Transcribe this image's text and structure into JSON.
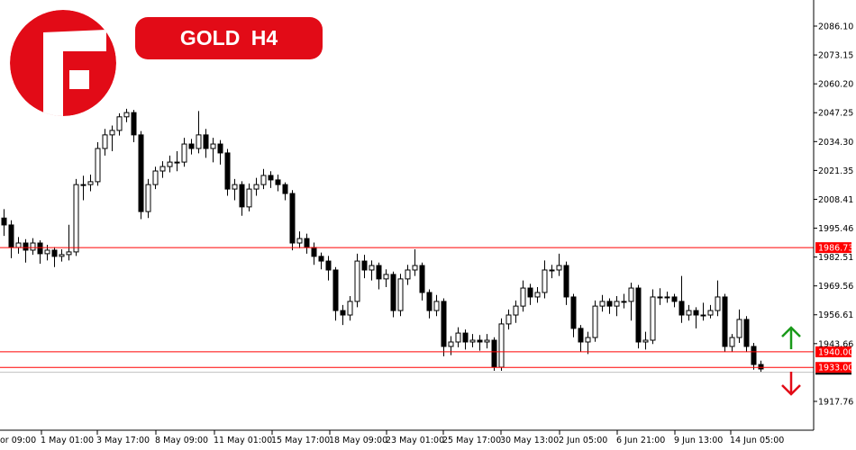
{
  "header": {
    "symbol_timeframe": "GOLD  H4",
    "logo_letter": "F"
  },
  "colors": {
    "brand_red": "#e20b17",
    "level_line": "#ff0000",
    "bid_line": "#c0c0c0",
    "up_arrow": "#1a9a1a",
    "down_arrow": "#e20b17",
    "bull_body": "#ffffff",
    "bear_body": "#000000"
  },
  "chart_data": {
    "type": "candlestick",
    "title": "GOLD H4",
    "ylim": [
      1910,
      2100
    ],
    "y_axis_position": "right",
    "grid": false,
    "y_ticks": [
      "2086.10",
      "2073.15",
      "2060.20",
      "2047.25",
      "2034.30",
      "2021.35",
      "2008.41",
      "1995.46",
      "1982.51",
      "1969.56",
      "1956.61",
      "1943.66",
      "1917.76"
    ],
    "x_ticks": [
      "or 09:00",
      "1 May 01:00",
      "3 May 17:00",
      "8 May 09:00",
      "11 May 01:00",
      "15 May 17:00",
      "18 May 09:00",
      "23 May 01:00",
      "25 May 17:00",
      "30 May 13:00",
      "2 Jun 05:00",
      "6 Jun 21:00",
      "9 Jun 13:00",
      "14 Jun 05:00"
    ],
    "levels": [
      {
        "price": 1986.73,
        "label": "1986.73"
      },
      {
        "price": 1940.0,
        "label": "1940.00"
      },
      {
        "price": 1933.0,
        "label": "1933.00"
      }
    ],
    "bid_line": 1931.0,
    "signals": [
      {
        "direction": "up"
      },
      {
        "direction": "down"
      }
    ],
    "candles_ohlc": [
      [
        2000.0,
        2004.0,
        1992.0,
        1996.9
      ],
      [
        1996.9,
        1999.0,
        1982.0,
        1986.8
      ],
      [
        1986.8,
        1991.5,
        1984.0,
        1988.8
      ],
      [
        1988.8,
        1990.5,
        1980.0,
        1985.6
      ],
      [
        1985.6,
        1991.0,
        1983.5,
        1988.8
      ],
      [
        1988.8,
        1990.0,
        1979.5,
        1984.0
      ],
      [
        1984.0,
        1988.0,
        1981.0,
        1985.6
      ],
      [
        1985.6,
        1987.0,
        1978.0,
        1982.8
      ],
      [
        1982.8,
        1986.0,
        1980.5,
        1983.6
      ],
      [
        1983.6,
        1997.0,
        1981.0,
        1984.8
      ],
      [
        1984.8,
        2017.5,
        1983.0,
        2015.0
      ],
      [
        2015.0,
        2019.0,
        2008.0,
        2015.0
      ],
      [
        2015.0,
        2019.5,
        2012.0,
        2016.3
      ],
      [
        2016.3,
        2034.0,
        2014.5,
        2031.2
      ],
      [
        2031.2,
        2040.0,
        2028.0,
        2037.3
      ],
      [
        2037.3,
        2041.5,
        2030.0,
        2039.3
      ],
      [
        2039.3,
        2047.0,
        2037.0,
        2045.4
      ],
      [
        2045.4,
        2049.0,
        2043.0,
        2047.3
      ],
      [
        2047.3,
        2048.5,
        2034.0,
        2037.3
      ],
      [
        2037.3,
        2039.0,
        1999.5,
        2002.9
      ],
      [
        2002.9,
        2017.5,
        2000.0,
        2015.0
      ],
      [
        2015.0,
        2023.0,
        2013.0,
        2021.1
      ],
      [
        2021.1,
        2025.5,
        2018.0,
        2023.1
      ],
      [
        2023.1,
        2028.0,
        2020.5,
        2025.1
      ],
      [
        2025.1,
        2030.0,
        2021.0,
        2025.1
      ],
      [
        2025.1,
        2036.0,
        2023.0,
        2033.2
      ],
      [
        2033.2,
        2035.5,
        2028.5,
        2031.2
      ],
      [
        2031.2,
        2048.0,
        2029.0,
        2037.3
      ],
      [
        2037.3,
        2040.0,
        2027.0,
        2031.2
      ],
      [
        2031.2,
        2036.0,
        2025.0,
        2033.2
      ],
      [
        2033.2,
        2035.0,
        2024.0,
        2029.2
      ],
      [
        2029.2,
        2031.0,
        2010.0,
        2013.0
      ],
      [
        2013.0,
        2017.5,
        2008.0,
        2015.0
      ],
      [
        2015.0,
        2016.5,
        2001.0,
        2005.0
      ],
      [
        2005.0,
        2015.5,
        2003.0,
        2013.0
      ],
      [
        2013.0,
        2018.0,
        2010.0,
        2015.0
      ],
      [
        2015.0,
        2022.0,
        2013.0,
        2019.1
      ],
      [
        2019.1,
        2021.0,
        2013.5,
        2017.1
      ],
      [
        2017.1,
        2019.5,
        2012.0,
        2015.0
      ],
      [
        2015.0,
        2016.0,
        2008.0,
        2011.0
      ],
      [
        2011.0,
        2012.5,
        1985.5,
        1988.8
      ],
      [
        1988.8,
        1994.0,
        1986.5,
        1990.8
      ],
      [
        1990.8,
        1993.0,
        1984.0,
        1986.8
      ],
      [
        1986.8,
        1989.0,
        1979.0,
        1982.8
      ],
      [
        1982.8,
        1984.5,
        1977.0,
        1980.7
      ],
      [
        1980.7,
        1983.0,
        1972.0,
        1976.7
      ],
      [
        1976.7,
        1978.0,
        1954.0,
        1958.5
      ],
      [
        1958.5,
        1961.0,
        1952.0,
        1956.5
      ],
      [
        1956.5,
        1965.0,
        1954.0,
        1962.6
      ],
      [
        1962.6,
        1984.0,
        1960.0,
        1980.7
      ],
      [
        1980.7,
        1983.5,
        1973.0,
        1976.7
      ],
      [
        1976.7,
        1981.0,
        1972.0,
        1978.7
      ],
      [
        1978.7,
        1980.0,
        1968.0,
        1972.7
      ],
      [
        1972.7,
        1977.0,
        1969.0,
        1974.7
      ],
      [
        1974.7,
        1976.0,
        1955.5,
        1958.5
      ],
      [
        1958.5,
        1975.0,
        1956.0,
        1972.7
      ],
      [
        1972.7,
        1979.0,
        1970.0,
        1976.7
      ],
      [
        1976.7,
        1986.0,
        1974.0,
        1978.7
      ],
      [
        1978.7,
        1980.0,
        1963.0,
        1966.6
      ],
      [
        1966.6,
        1968.0,
        1955.0,
        1958.5
      ],
      [
        1958.5,
        1965.5,
        1956.0,
        1962.6
      ],
      [
        1962.6,
        1964.0,
        1938.0,
        1942.4
      ],
      [
        1942.4,
        1947.0,
        1938.5,
        1944.4
      ],
      [
        1944.4,
        1951.0,
        1942.0,
        1948.4
      ],
      [
        1948.4,
        1950.0,
        1941.0,
        1944.4
      ],
      [
        1944.4,
        1948.0,
        1942.0,
        1945.2
      ],
      [
        1945.2,
        1947.5,
        1940.5,
        1944.4
      ],
      [
        1944.4,
        1948.0,
        1941.5,
        1945.2
      ],
      [
        1945.2,
        1946.5,
        1931.5,
        1933.1
      ],
      [
        1933.1,
        1955.0,
        1931.5,
        1952.5
      ],
      [
        1952.5,
        1959.0,
        1950.0,
        1956.5
      ],
      [
        1956.5,
        1963.0,
        1953.0,
        1960.5
      ],
      [
        1960.5,
        1972.0,
        1958.0,
        1968.6
      ],
      [
        1968.6,
        1970.5,
        1961.0,
        1964.6
      ],
      [
        1964.6,
        1969.0,
        1962.0,
        1966.6
      ],
      [
        1966.6,
        1981.0,
        1964.0,
        1976.7
      ],
      [
        1976.7,
        1979.0,
        1973.0,
        1976.7
      ],
      [
        1976.7,
        1984.0,
        1974.0,
        1978.7
      ],
      [
        1978.7,
        1980.5,
        1961.0,
        1964.6
      ],
      [
        1964.6,
        1966.0,
        1946.5,
        1950.5
      ],
      [
        1950.5,
        1952.0,
        1940.0,
        1944.4
      ],
      [
        1944.4,
        1949.0,
        1939.0,
        1946.4
      ],
      [
        1946.4,
        1963.0,
        1944.5,
        1960.5
      ],
      [
        1960.5,
        1965.5,
        1958.0,
        1962.6
      ],
      [
        1962.6,
        1964.0,
        1957.0,
        1960.5
      ],
      [
        1960.5,
        1965.0,
        1956.0,
        1962.6
      ],
      [
        1962.6,
        1966.0,
        1959.5,
        1962.6
      ],
      [
        1962.6,
        1971.0,
        1954.0,
        1968.6
      ],
      [
        1968.6,
        1970.0,
        1941.5,
        1944.4
      ],
      [
        1944.4,
        1949.0,
        1941.0,
        1945.2
      ],
      [
        1945.2,
        1968.0,
        1943.5,
        1964.6
      ],
      [
        1964.6,
        1968.5,
        1961.0,
        1964.6
      ],
      [
        1964.6,
        1967.0,
        1962.0,
        1964.6
      ],
      [
        1964.6,
        1966.0,
        1960.0,
        1962.6
      ],
      [
        1962.6,
        1974.0,
        1953.0,
        1956.5
      ],
      [
        1956.5,
        1961.0,
        1954.0,
        1958.5
      ],
      [
        1958.5,
        1960.0,
        1950.5,
        1956.5
      ],
      [
        1956.5,
        1962.0,
        1954.0,
        1956.5
      ],
      [
        1956.5,
        1961.0,
        1955.0,
        1958.5
      ],
      [
        1958.5,
        1972.0,
        1956.0,
        1964.6
      ],
      [
        1964.6,
        1966.0,
        1940.0,
        1942.4
      ],
      [
        1942.4,
        1948.0,
        1940.0,
        1946.4
      ],
      [
        1946.4,
        1959.0,
        1944.0,
        1954.5
      ],
      [
        1954.5,
        1956.0,
        1940.0,
        1942.4
      ],
      [
        1942.4,
        1944.0,
        1932.0,
        1934.3
      ],
      [
        1934.3,
        1936.0,
        1931.0,
        1932.3
      ]
    ]
  }
}
